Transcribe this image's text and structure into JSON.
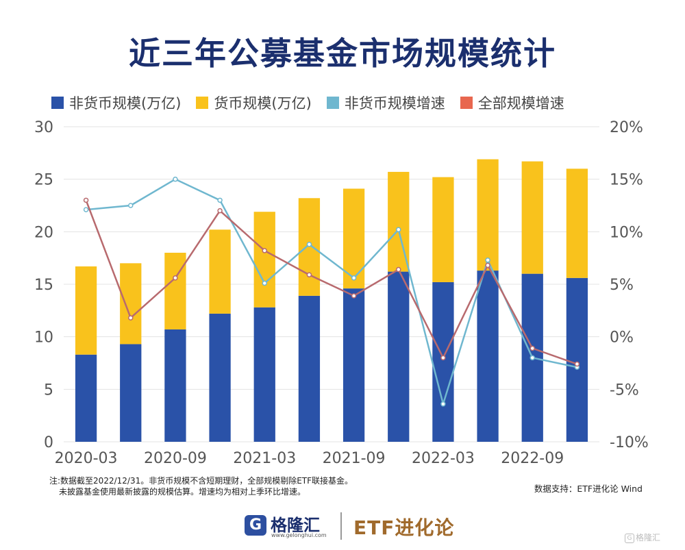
{
  "title": "近三年公募基金市场规模统计",
  "legend": [
    {
      "label": "非货币规模(万亿)",
      "color": "#2a52a8"
    },
    {
      "label": "货币规模(万亿)",
      "color": "#f9c21c"
    },
    {
      "label": "非货币规模增速",
      "color": "#6fb7cf"
    },
    {
      "label": "全部规模增速",
      "color": "#e8674f"
    }
  ],
  "note": {
    "line1": "注:数据截至2022/12/31。非货币规模不含短期理财，全部规模剔除ETF联接基金。",
    "line2": "未披露基金使用最新披露的规模估算。增速均为相对上季环比增速。"
  },
  "support": "数据支持：ETF进化论 Wind",
  "footer": {
    "brand": "格隆汇",
    "brand_url": "www.gelonghui.com",
    "partner": "ETF进化论",
    "watermark": "格隆汇"
  },
  "chart_data": {
    "type": "bar",
    "stacked": true,
    "categories": [
      "2020-03",
      "2020-06",
      "2020-09",
      "2020-12",
      "2021-03",
      "2021-06",
      "2021-09",
      "2021-12",
      "2022-03",
      "2022-06",
      "2022-09",
      "2022-12"
    ],
    "x_tick_labels": [
      "2020-03",
      "2020-09",
      "2021-03",
      "2021-09",
      "2022-03",
      "2022-09"
    ],
    "y_left": {
      "ticks": [
        "0",
        "5",
        "10",
        "15",
        "20",
        "25",
        "30"
      ],
      "ylim": [
        0,
        30
      ]
    },
    "y_right": {
      "ticks": [
        "-10%",
        "-5%",
        "0%",
        "5%",
        "10%",
        "15%",
        "20%"
      ],
      "ylim": [
        -10,
        20
      ]
    },
    "series": [
      {
        "name": "非货币规模(万亿)",
        "axis": "left",
        "kind": "bar",
        "color": "#2a52a8",
        "values": [
          8.3,
          9.3,
          10.7,
          12.2,
          12.8,
          13.9,
          14.6,
          16.2,
          15.2,
          16.3,
          16.0,
          15.6
        ]
      },
      {
        "name": "货币规模(万亿)",
        "axis": "left",
        "kind": "bar",
        "color": "#f9c21c",
        "values": [
          8.4,
          7.7,
          7.3,
          8.0,
          9.1,
          9.3,
          9.5,
          9.5,
          10.0,
          10.6,
          10.7,
          10.4
        ]
      },
      {
        "name": "非货币规模增速",
        "axis": "right",
        "kind": "line",
        "color": "#6fb7cf",
        "values": [
          12.1,
          12.5,
          15.0,
          13.0,
          5.1,
          8.8,
          5.6,
          10.2,
          -6.4,
          7.3,
          -2.0,
          -2.9
        ]
      },
      {
        "name": "全部规模增速",
        "axis": "right",
        "kind": "line",
        "color": "#b86a6e",
        "values": [
          13.0,
          1.8,
          5.6,
          12.0,
          8.2,
          5.9,
          3.9,
          6.4,
          -2.0,
          6.8,
          -1.1,
          -2.6
        ]
      }
    ],
    "grid": true,
    "legend_position": "top"
  }
}
